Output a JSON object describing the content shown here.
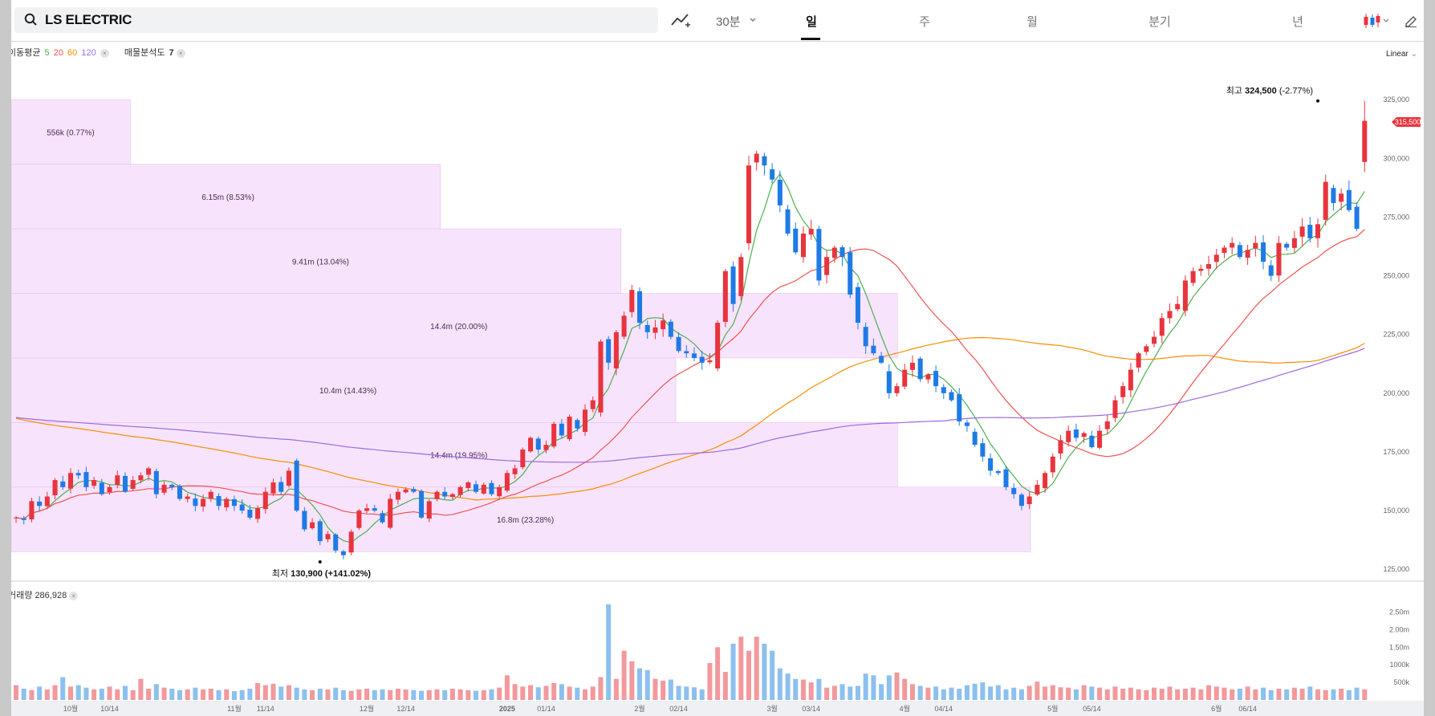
{
  "app": {
    "title": "LS ELECTRIC"
  },
  "toolbar": {
    "interval": "30분",
    "tabs": [
      "일",
      "주",
      "월",
      "분기",
      "년"
    ],
    "active_tab": "일",
    "scale": "Linear"
  },
  "legend": {
    "ma_label": "이동평균",
    "ma_periods": [
      "5",
      "20",
      "60",
      "120"
    ],
    "vp_label": "매물분석도",
    "vp_value": "7"
  },
  "volume_legend": {
    "label": "거래량",
    "value": "286,928"
  },
  "colors": {
    "up": "#e8343d",
    "down": "#1e7be6",
    "ma5": "#4caf50",
    "ma20": "#ef5350",
    "ma60": "#fb8c00",
    "ma120": "#9c6ade",
    "vol_up": "#f2999d",
    "vol_down": "#8cc0ef",
    "vp_fill": "#f7e4fc"
  },
  "chart_data": {
    "type": "candlestick",
    "title": "LS ELECTRIC",
    "ylim": [
      122000,
      335000
    ],
    "y_ticks": [
      125000,
      150000,
      175000,
      200000,
      225000,
      250000,
      275000,
      300000,
      325000
    ],
    "y_tick_labels": [
      "125,000",
      "150,000",
      "175,000",
      "200,000",
      "225,000",
      "250,000",
      "275,000",
      "300,000",
      "325,000"
    ],
    "x_labels": [
      "10월",
      "10/14",
      "11월",
      "11/14",
      "12월",
      "12/14",
      "2025",
      "01/14",
      "2월",
      "02/14",
      "3월",
      "03/14",
      "4월",
      "04/14",
      "5월",
      "05/14",
      "6월",
      "06/14"
    ],
    "x_label_index": [
      7,
      12,
      28,
      32,
      45,
      50,
      63,
      68,
      80,
      85,
      97,
      102,
      114,
      119,
      133,
      138,
      154,
      158
    ],
    "current_price": 315500,
    "current_price_label": "315,500",
    "high_annotation": {
      "label": "최고",
      "value": "324,500",
      "change": "(-2.77%)",
      "index": 167
    },
    "low_annotation": {
      "label": "최저",
      "value": "130,900",
      "change": "(+141.02%)",
      "index": 39
    },
    "closes": [
      147000,
      146000,
      154000,
      152000,
      156000,
      163000,
      160000,
      166000,
      165000,
      160000,
      163000,
      157000,
      160000,
      165000,
      158000,
      163000,
      165000,
      168000,
      157000,
      161000,
      160000,
      155000,
      156000,
      152000,
      155000,
      158000,
      152000,
      155000,
      152000,
      150000,
      147000,
      151000,
      158000,
      162000,
      158000,
      167000,
      150000,
      142000,
      145000,
      137000,
      140000,
      133000,
      131000,
      141000,
      150000,
      151000,
      150000,
      145000,
      155000,
      158000,
      159000,
      158000,
      147000,
      154000,
      158000,
      156000,
      157000,
      160000,
      162000,
      158000,
      161000,
      157000,
      160000,
      166000,
      168000,
      176000,
      181000,
      176000,
      178000,
      187000,
      182000,
      190000,
      185000,
      193000,
      197000,
      222000,
      213000,
      226000,
      233000,
      244000,
      230000,
      226000,
      228000,
      231000,
      224000,
      218000,
      217000,
      215000,
      213000,
      214000,
      230000,
      252000,
      238000,
      258000,
      297000,
      302000,
      297000,
      291000,
      280000,
      268000,
      260000,
      268000,
      270000,
      248000,
      258000,
      262000,
      258000,
      242000,
      230000,
      220000,
      217000,
      213000,
      200000,
      203000,
      210000,
      213000,
      206000,
      208000,
      203000,
      200000,
      197000,
      188000,
      186000,
      178000,
      173000,
      167000,
      166000,
      160000,
      157000,
      152000,
      156000,
      161000,
      166000,
      173000,
      180000,
      184000,
      181000,
      183000,
      177000,
      184000,
      188000,
      197000,
      203000,
      210000,
      217000,
      220000,
      224000,
      232000,
      235000,
      238000,
      248000,
      252000,
      253000,
      255000,
      259000,
      262000,
      264000,
      258000,
      261000,
      264000,
      256000,
      250000,
      264000,
      262000,
      266000,
      271000,
      266000,
      272000,
      290000,
      281000,
      285000,
      278000,
      270000,
      316000
    ],
    "series": [
      {
        "name": "MA5",
        "period": "5"
      },
      {
        "name": "MA20",
        "period": "20"
      },
      {
        "name": "MA60",
        "period": "60"
      },
      {
        "name": "MA120",
        "period": "120"
      }
    ],
    "volume_profile": [
      {
        "label": "556k (0.77%)",
        "price_low": 297500,
        "price_high": 325000,
        "volume_k": 556
      },
      {
        "label": "6.15m (8.53%)",
        "price_low": 270000,
        "price_high": 297500,
        "volume_k": 6150
      },
      {
        "label": "9.41m (13.04%)",
        "price_low": 242500,
        "price_high": 270000,
        "volume_k": 9410
      },
      {
        "label": "14.4m (20.00%)",
        "price_low": 215000,
        "price_high": 242500,
        "volume_k": 14400
      },
      {
        "label": "10.4m (14.43%)",
        "price_low": 187500,
        "price_high": 215000,
        "volume_k": 10400
      },
      {
        "label": "14.4m (19.95%)",
        "price_low": 160000,
        "price_high": 187500,
        "volume_k": 14400
      },
      {
        "label": "16.8m (23.28%)",
        "price_low": 132500,
        "price_high": 160000,
        "volume_k": 16800
      }
    ],
    "volume": {
      "ylim_k": [
        0,
        2900
      ],
      "ticks": [
        "500k",
        "1000k",
        "1.50m",
        "2.00m",
        "2.50m"
      ],
      "tick_values_k": [
        500,
        1000,
        1500,
        2000,
        2500
      ],
      "values_k": [
        420,
        320,
        280,
        380,
        300,
        420,
        650,
        380,
        420,
        350,
        300,
        320,
        380,
        300,
        400,
        280,
        600,
        320,
        450,
        350,
        320,
        280,
        300,
        350,
        300,
        320,
        280,
        300,
        250,
        280,
        320,
        480,
        420,
        460,
        380,
        420,
        350,
        300,
        280,
        320,
        300,
        350,
        280,
        260,
        300,
        320,
        280,
        300,
        280,
        320,
        300,
        280,
        260,
        280,
        300,
        280,
        320,
        300,
        280,
        260,
        280,
        300,
        350,
        700,
        450,
        380,
        420,
        360,
        400,
        480,
        450,
        380,
        350,
        300,
        380,
        650,
        2720,
        600,
        1400,
        1100,
        900,
        850,
        600,
        550,
        580,
        400,
        380,
        360,
        300,
        1050,
        1500,
        800,
        1600,
        1800,
        1400,
        1800,
        1600,
        1400,
        900,
        750,
        600,
        580,
        500,
        600,
        350,
        400,
        450,
        380,
        400,
        750,
        700,
        450,
        700,
        780,
        600,
        450,
        400,
        350,
        380,
        300,
        350,
        320,
        420,
        460,
        500,
        380,
        420,
        300,
        350,
        300,
        400,
        520,
        380,
        420,
        360,
        350,
        300,
        420,
        380,
        350,
        300,
        380,
        320,
        350,
        300,
        280,
        350,
        320,
        380,
        300,
        320,
        350,
        300,
        420,
        380,
        350,
        300,
        320,
        380,
        300,
        350,
        280,
        320,
        300,
        350,
        320,
        380,
        300,
        280,
        300,
        320,
        280,
        350,
        300,
        320,
        420,
        580
      ]
    }
  }
}
